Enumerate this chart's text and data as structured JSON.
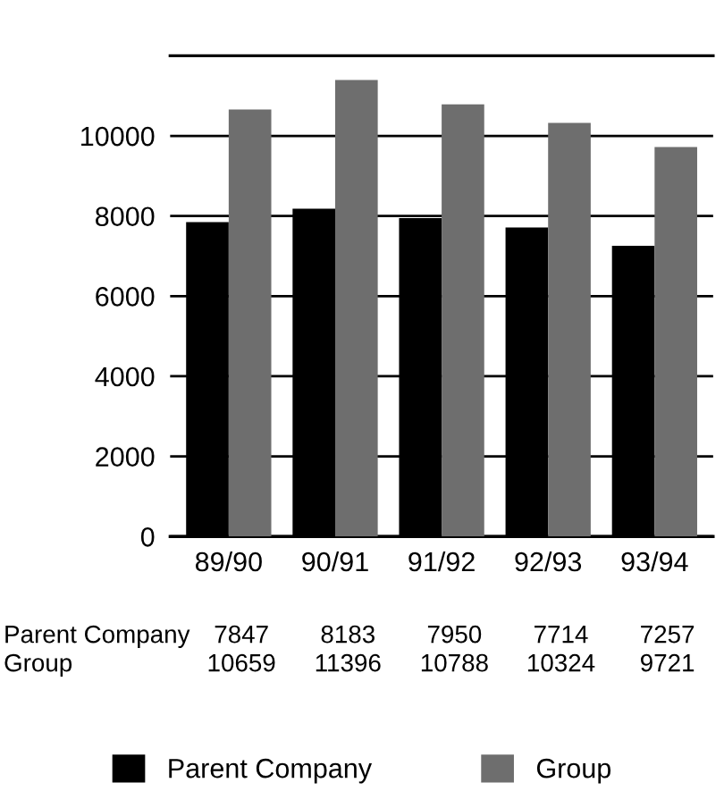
{
  "chart_data": {
    "type": "bar",
    "categories": [
      "89/90",
      "90/91",
      "91/92",
      "92/93",
      "93/94"
    ],
    "series": [
      {
        "name": "Parent Company",
        "color": "#000000",
        "values": [
          7847,
          8183,
          7950,
          7714,
          7257
        ]
      },
      {
        "name": "Group",
        "color": "#6e6e6e",
        "values": [
          10659,
          11396,
          10788,
          10324,
          9721
        ]
      }
    ],
    "ylim": [
      0,
      12000
    ],
    "yticks": [
      0,
      2000,
      4000,
      6000,
      8000,
      10000
    ],
    "grid": "y",
    "legend": "bottom",
    "data_labels": true
  }
}
